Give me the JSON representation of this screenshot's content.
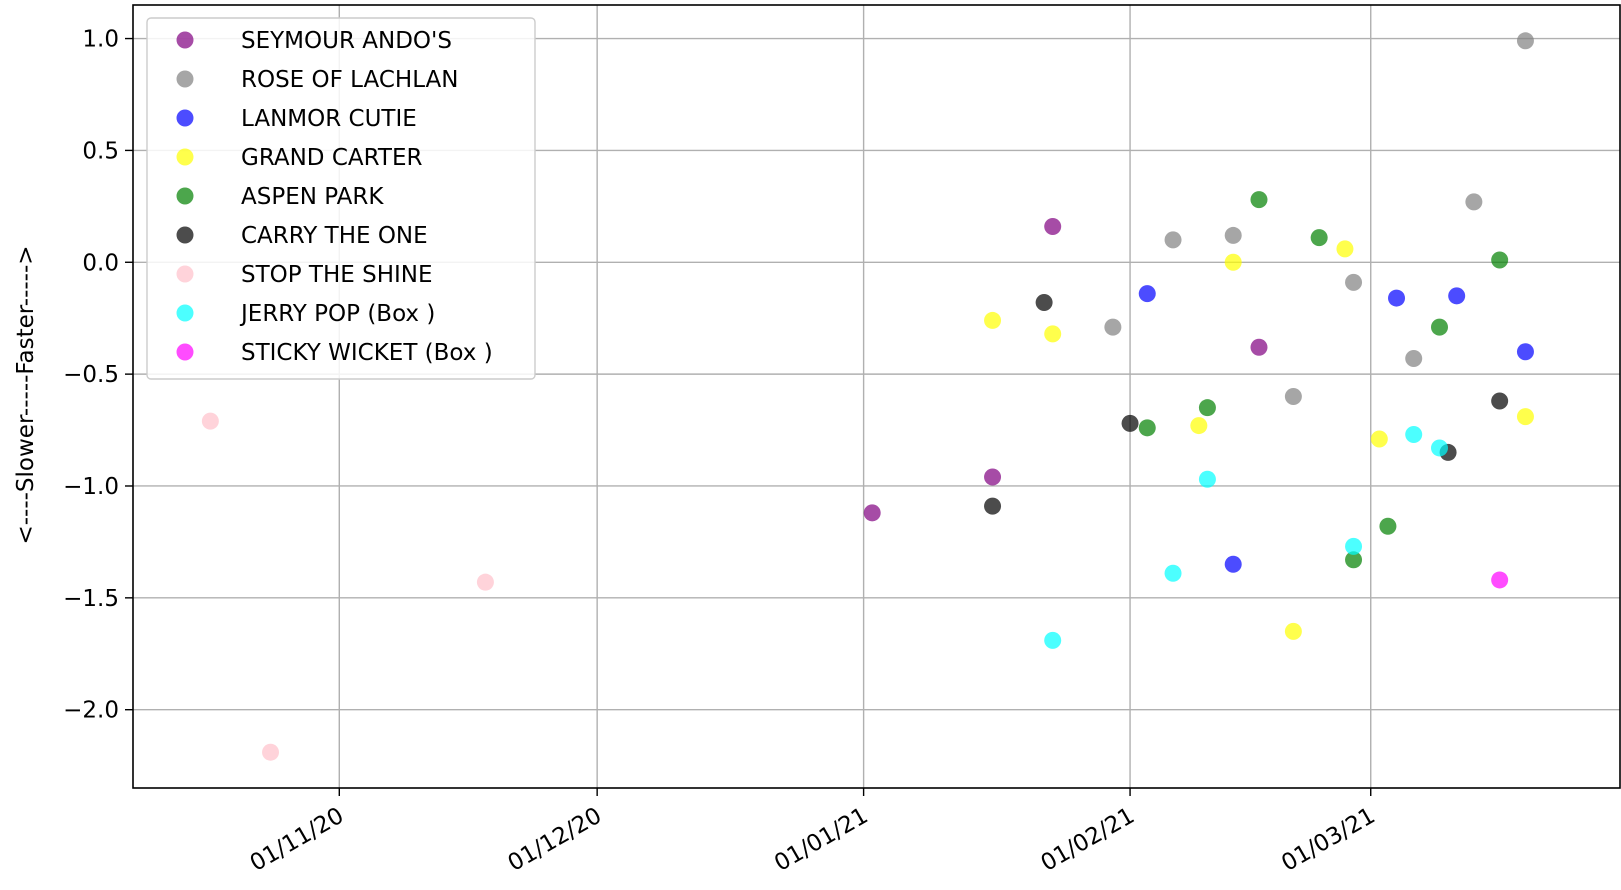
{
  "chart_data": {
    "type": "scatter",
    "title": "",
    "xlabel": "",
    "ylabel": "<----Slower-----Faster----->",
    "x_is_date": true,
    "xlim": [
      "2020-10-08",
      "2021-03-30"
    ],
    "ylim": [
      -2.35,
      1.15
    ],
    "xticks": [
      {
        "date": "2020-11-01",
        "label": "01/11/20"
      },
      {
        "date": "2020-12-01",
        "label": "01/12/20"
      },
      {
        "date": "2021-01-01",
        "label": "01/01/21"
      },
      {
        "date": "2021-02-01",
        "label": "01/02/21"
      },
      {
        "date": "2021-03-01",
        "label": "01/03/21"
      }
    ],
    "yticks": [
      {
        "value": 1.0,
        "label": "1.0"
      },
      {
        "value": 0.5,
        "label": "0.5"
      },
      {
        "value": 0.0,
        "label": "0.0"
      },
      {
        "value": -0.5,
        "label": "−0.5"
      },
      {
        "value": -1.0,
        "label": "−1.0"
      },
      {
        "value": -1.5,
        "label": "−1.5"
      },
      {
        "value": -2.0,
        "label": "−2.0"
      }
    ],
    "grid": true,
    "legend_position": "top-left",
    "series": [
      {
        "name": "SEYMOUR ANDO'S",
        "color": "#800080",
        "points": [
          {
            "x": "2021-01-02",
            "y": -1.12
          },
          {
            "x": "2021-01-16",
            "y": -0.96
          },
          {
            "x": "2021-01-23",
            "y": 0.16
          },
          {
            "x": "2021-02-16",
            "y": -0.38
          }
        ]
      },
      {
        "name": "ROSE OF LACHLAN",
        "color": "#808080",
        "points": [
          {
            "x": "2021-01-30",
            "y": -0.29
          },
          {
            "x": "2021-02-06",
            "y": 0.1
          },
          {
            "x": "2021-02-13",
            "y": 0.12
          },
          {
            "x": "2021-02-20",
            "y": -0.6
          },
          {
            "x": "2021-02-27",
            "y": -0.09
          },
          {
            "x": "2021-03-06",
            "y": -0.43
          },
          {
            "x": "2021-03-13",
            "y": 0.27
          },
          {
            "x": "2021-03-19",
            "y": 0.99
          }
        ]
      },
      {
        "name": "LANMOR CUTIE",
        "color": "#0000ff",
        "points": [
          {
            "x": "2021-02-03",
            "y": -0.14
          },
          {
            "x": "2021-02-13",
            "y": -1.35
          },
          {
            "x": "2021-03-04",
            "y": -0.16
          },
          {
            "x": "2021-03-11",
            "y": -0.15
          },
          {
            "x": "2021-03-19",
            "y": -0.4
          }
        ]
      },
      {
        "name": "GRAND CARTER",
        "color": "#ffff00",
        "points": [
          {
            "x": "2021-01-16",
            "y": -0.26
          },
          {
            "x": "2021-01-23",
            "y": -0.32
          },
          {
            "x": "2021-02-09",
            "y": -0.73
          },
          {
            "x": "2021-02-13",
            "y": 0.0
          },
          {
            "x": "2021-02-20",
            "y": -1.65
          },
          {
            "x": "2021-02-26",
            "y": 0.06
          },
          {
            "x": "2021-03-02",
            "y": -0.79
          },
          {
            "x": "2021-03-19",
            "y": -0.69
          }
        ]
      },
      {
        "name": "ASPEN PARK",
        "color": "#008000",
        "points": [
          {
            "x": "2021-02-03",
            "y": -0.74
          },
          {
            "x": "2021-02-10",
            "y": -0.65
          },
          {
            "x": "2021-02-16",
            "y": 0.28
          },
          {
            "x": "2021-02-23",
            "y": 0.11
          },
          {
            "x": "2021-02-27",
            "y": -1.33
          },
          {
            "x": "2021-03-03",
            "y": -1.18
          },
          {
            "x": "2021-03-09",
            "y": -0.29
          },
          {
            "x": "2021-03-16",
            "y": 0.01
          }
        ]
      },
      {
        "name": "CARRY THE ONE",
        "color": "#000000",
        "points": [
          {
            "x": "2021-01-16",
            "y": -1.09
          },
          {
            "x": "2021-01-22",
            "y": -0.18
          },
          {
            "x": "2021-02-01",
            "y": -0.72
          },
          {
            "x": "2021-03-10",
            "y": -0.85
          },
          {
            "x": "2021-03-16",
            "y": -0.62
          }
        ]
      },
      {
        "name": "STOP THE SHINE",
        "color": "#ffc0cb",
        "points": [
          {
            "x": "2020-10-17",
            "y": -0.71
          },
          {
            "x": "2020-10-24",
            "y": -2.19
          },
          {
            "x": "2020-11-18",
            "y": -1.43
          }
        ]
      },
      {
        "name": "JERRY POP (Box )",
        "color": "#00ffff",
        "points": [
          {
            "x": "2021-01-23",
            "y": -1.69
          },
          {
            "x": "2021-02-06",
            "y": -1.39
          },
          {
            "x": "2021-02-10",
            "y": -0.97
          },
          {
            "x": "2021-02-27",
            "y": -1.27
          },
          {
            "x": "2021-03-06",
            "y": -0.77
          },
          {
            "x": "2021-03-09",
            "y": -0.83
          }
        ]
      },
      {
        "name": "STICKY WICKET (Box )",
        "color": "#ff00ff",
        "points": [
          {
            "x": "2021-03-16",
            "y": -1.42
          }
        ]
      }
    ]
  }
}
